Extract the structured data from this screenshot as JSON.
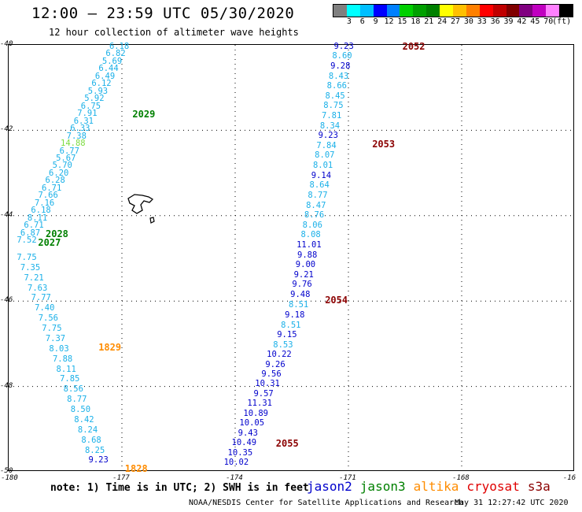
{
  "title": "12:00 – 23:59 UTC 05/30/2020",
  "subtitle": "12 hour collection of altimeter wave heights",
  "scale": {
    "colors": [
      "#808080",
      "#00ffff",
      "#00bfff",
      "#0000ff",
      "#0080ff",
      "#00d000",
      "#00a000",
      "#008000",
      "#ffff00",
      "#ffc000",
      "#ff8000",
      "#ff0000",
      "#c00000",
      "#800000",
      "#800080",
      "#c000c0",
      "#ff80ff",
      "#000000"
    ],
    "labels": [
      "3",
      "6",
      "9",
      "12",
      "15",
      "18",
      "21",
      "24",
      "27",
      "30",
      "33",
      "36",
      "39",
      "42",
      "45",
      "70",
      "(ft)"
    ]
  },
  "axes": {
    "lat_labels": [
      "-40",
      "-42",
      "-44",
      "-46",
      "-48",
      "-50"
    ],
    "lon_labels": [
      "-180",
      "-177",
      "-174",
      "-171",
      "-168",
      "-16"
    ]
  },
  "tracks": [
    {
      "color": "#1ab0e8",
      "lon_start": -177.05,
      "lat_start": -40.05,
      "lon_end": -179.5,
      "lat_end": -44.6,
      "values": [
        "6.18",
        "6.82",
        "5.69",
        "6.44",
        "6.49",
        "6.12",
        "5.93",
        "5.92",
        "6.75",
        "7.91",
        "6.31",
        "6.33",
        "7.38",
        "14.88",
        "6.77",
        "5.67",
        "5.70",
        "6.20",
        "6.28",
        "6.71",
        "7.66",
        "7.16",
        "6.18",
        "8.11",
        "6.71",
        "6.87",
        "7.52"
      ],
      "value_colors": {
        "13": "#7ddc40"
      }
    },
    {
      "color": "#1ab0e8",
      "lon_start": -179.5,
      "lat_start": -45.0,
      "lon_end": -177.6,
      "lat_end": -49.75,
      "values": [
        "7.75",
        "7.35",
        "7.21",
        "7.63",
        "7.77",
        "7.40",
        "7.56",
        "7.75",
        "7.37",
        "8.03",
        "7.88",
        "8.11",
        "7.85",
        "8.56",
        "8.77",
        "8.50",
        "8.42",
        "8.24",
        "8.68",
        "8.25",
        "9.23"
      ],
      "value_colors": {
        "20": "#0000cc"
      }
    },
    {
      "color": "#1ab0e8",
      "lon_start": -171.1,
      "lat_start": -40.05,
      "lon_end": -172.3,
      "lat_end": -46.1,
      "values": [
        "9.23",
        "8.60",
        "9.28",
        "8.43",
        "8.66",
        "8.45",
        "8.75",
        "7.81",
        "8.34",
        "9.23",
        "7.84",
        "8.07",
        "8.01",
        "9.14",
        "8.64",
        "8.77",
        "8.47",
        "8.76",
        "8.06",
        "8.08",
        "11.01",
        "9.88",
        "9.00",
        "9.21",
        "9.76",
        "9.48",
        "8.51"
      ],
      "value_colors": {
        "0": "#0000cc",
        "2": "#0000cc",
        "9": "#0000cc",
        "13": "#0000cc",
        "20": "#0000cc",
        "21": "#0000cc",
        "22": "#0000cc",
        "23": "#0000cc",
        "24": "#0000cc",
        "25": "#0000cc"
      }
    },
    {
      "color": "#0000cc",
      "lon_start": -172.4,
      "lat_start": -46.35,
      "lon_end": -173.95,
      "lat_end": -49.8,
      "values": [
        "9.18",
        "8.51",
        "9.15",
        "8.53",
        "10.22",
        "9.26",
        "9.56",
        "10.31",
        "9.57",
        "11.31",
        "10.89",
        "10.05",
        "9.43",
        "10.49",
        "10.35",
        "10.02"
      ],
      "value_colors": {
        "1": "#1ab0e8",
        "3": "#1ab0e8"
      }
    }
  ],
  "pass_ids": [
    {
      "text": "2052",
      "color": "#8b0000",
      "lon": -169.55,
      "lat": -40.05
    },
    {
      "text": "2053",
      "color": "#8b0000",
      "lon": -170.35,
      "lat": -42.35
    },
    {
      "text": "2054",
      "color": "#8b0000",
      "lon": -171.6,
      "lat": -46.0
    },
    {
      "text": "2055",
      "color": "#8b0000",
      "lon": -172.9,
      "lat": -49.35
    },
    {
      "text": "2029",
      "color": "#008000",
      "lon": -176.7,
      "lat": -41.65
    },
    {
      "text": "2028",
      "color": "#008000",
      "lon": -179.0,
      "lat": -44.45
    },
    {
      "text": "2027",
      "color": "#008000",
      "lon": -179.2,
      "lat": -44.65
    },
    {
      "text": "1829",
      "color": "#ff8c00",
      "lon": -177.6,
      "lat": -47.1
    },
    {
      "text": "1828",
      "color": "#ff8c00",
      "lon": -176.9,
      "lat": -49.95
    }
  ],
  "note": "note: 1) Time is in UTC; 2) SWH is in feet",
  "legend": [
    {
      "label": "jason2",
      "color": "#0000cc"
    },
    {
      "label": "jason3",
      "color": "#008000"
    },
    {
      "label": "altika",
      "color": "#ff8c00"
    },
    {
      "label": "cryosat",
      "color": "#e00000"
    },
    {
      "label": "s3a",
      "color": "#8b0000"
    }
  ],
  "footer_org": "NOAA/NESDIS Center for Satellite Applications and Research",
  "footer_time": "May 31 12:27:42 UTC 2020"
}
